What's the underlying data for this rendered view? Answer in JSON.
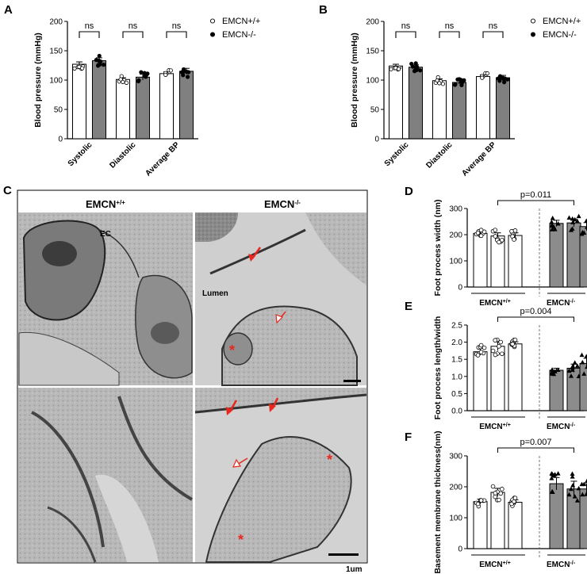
{
  "panels": {
    "a": {
      "letter": "A"
    },
    "b": {
      "letter": "B"
    },
    "c": {
      "letter": "C"
    },
    "d": {
      "letter": "D"
    },
    "e": {
      "letter": "E"
    },
    "f": {
      "letter": "F"
    }
  },
  "micrograph": {
    "wt_title": "EMCN+/+",
    "ko_title": "EMCN-/-",
    "ec_label": "EC",
    "lumen_label": "Lumen",
    "scale_label": "1um"
  },
  "chart_data": [
    {
      "id": "A",
      "type": "bar",
      "ylabel": "Blood pressure (mmHg)",
      "ylim": [
        0,
        200
      ],
      "yticks": [
        0,
        50,
        100,
        150,
        200
      ],
      "categories": [
        "Systolic",
        "Diastolic",
        "Average BP"
      ],
      "series": [
        {
          "name": "EMCN+/+",
          "values": [
            127,
            101,
            111
          ],
          "sem": [
            4,
            3,
            3
          ],
          "fill": "#ffffff"
        },
        {
          "name": "EMCN-/-",
          "values": [
            133,
            105,
            115
          ],
          "sem": [
            5,
            5,
            5
          ],
          "fill": "#808080"
        }
      ],
      "significance": [
        "ns",
        "ns",
        "ns"
      ],
      "legend": "top-right"
    },
    {
      "id": "B",
      "type": "bar",
      "ylabel": "Blood pressure (mmHg)",
      "ylim": [
        0,
        200
      ],
      "yticks": [
        0,
        50,
        100,
        150,
        200
      ],
      "categories": [
        "Systolic",
        "Diastolic",
        "Average BP"
      ],
      "series": [
        {
          "name": "EMCN+/+",
          "values": [
            124,
            99,
            106
          ],
          "sem": [
            3,
            3,
            3
          ],
          "fill": "#ffffff"
        },
        {
          "name": "EMCN-/-",
          "values": [
            122,
            96,
            104
          ],
          "sem": [
            4,
            3,
            4
          ],
          "fill": "#808080"
        }
      ],
      "significance": [
        "ns",
        "ns",
        "ns"
      ],
      "legend": "top-right"
    },
    {
      "id": "D",
      "type": "bar",
      "ylabel": "Foot process width (nm)",
      "ylim": [
        0,
        300
      ],
      "yticks": [
        0,
        100,
        200,
        300
      ],
      "groups": [
        "EMCN+/+",
        "EMCN-/-"
      ],
      "values": [
        205,
        195,
        197,
        243,
        245,
        231
      ],
      "sem": [
        7,
        12,
        10,
        12,
        15,
        15
      ],
      "pvalue": "p=0.011"
    },
    {
      "id": "E",
      "type": "bar",
      "ylabel": "Foot process length/width",
      "ylim": [
        0.0,
        2.5
      ],
      "yticks": [
        0.0,
        0.5,
        1.0,
        1.5,
        2.0,
        2.5
      ],
      "groups": [
        "EMCN+/+",
        "EMCN-/-"
      ],
      "values": [
        1.72,
        1.88,
        1.95,
        1.18,
        1.24,
        1.38
      ],
      "sem": [
        0.1,
        0.13,
        0.06,
        0.06,
        0.12,
        0.15
      ],
      "pvalue": "p=0.004"
    },
    {
      "id": "F",
      "type": "bar",
      "ylabel": "Basement membrane thickness(nm)",
      "ylim": [
        0,
        300
      ],
      "yticks": [
        0,
        100,
        200,
        300
      ],
      "groups": [
        "EMCN+/+",
        "EMCN-/-"
      ],
      "values": [
        152,
        182,
        150,
        210,
        193,
        193
      ],
      "sem": [
        8,
        13,
        8,
        20,
        25,
        17
      ],
      "pvalue": "p=0.007"
    }
  ]
}
